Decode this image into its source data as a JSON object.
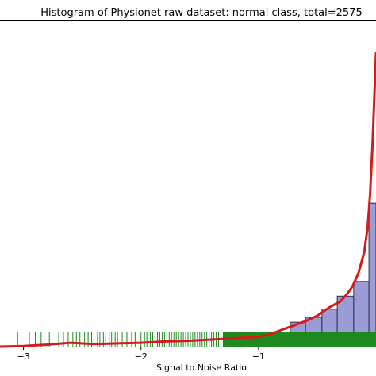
{
  "chart_data": {
    "type": "bar",
    "title": "Histogram of Physionet raw dataset: normal class, total=2575",
    "xlabel": "Signal to Noise Ratio",
    "ylabel": "",
    "xlim": [
      -3.2,
      0.0
    ],
    "ylim": [
      0,
      1.0
    ],
    "x_ticks": [
      -3,
      -2,
      -1
    ],
    "x_tick_labels": [
      "−3",
      "−2",
      "−1"
    ],
    "grid": false,
    "colors": {
      "bars": "#9b9bd6",
      "bar_edge": "#2e2e4a",
      "kde": "#d61a1a",
      "rug": "#1c8a1c",
      "axes": "#000000"
    },
    "bins": [
      {
        "x0": -1.27,
        "x1": -1.14,
        "value": 0.004
      },
      {
        "x0": -1.14,
        "x1": -1.0,
        "value": 0.01
      },
      {
        "x0": -1.0,
        "x1": -0.87,
        "value": 0.02
      },
      {
        "x0": -0.87,
        "x1": -0.73,
        "value": 0.035
      },
      {
        "x0": -0.73,
        "x1": -0.6,
        "value": 0.075
      },
      {
        "x0": -0.6,
        "x1": -0.46,
        "value": 0.09
      },
      {
        "x0": -0.46,
        "x1": -0.33,
        "value": 0.115
      },
      {
        "x0": -0.33,
        "x1": -0.19,
        "value": 0.155
      },
      {
        "x0": -0.19,
        "x1": -0.06,
        "value": 0.2
      },
      {
        "x0": -0.06,
        "x1": 0.0,
        "value": 0.44
      }
    ],
    "kde": {
      "x": [
        -3.2,
        -3.0,
        -2.8,
        -2.6,
        -2.4,
        -2.2,
        -2.0,
        -1.8,
        -1.6,
        -1.4,
        -1.2,
        -1.1,
        -1.0,
        -0.9,
        -0.8,
        -0.7,
        -0.6,
        -0.5,
        -0.4,
        -0.3,
        -0.25,
        -0.2,
        -0.15,
        -0.1,
        -0.07,
        -0.05,
        -0.03,
        -0.015,
        0.0
      ],
      "y": [
        0.0,
        0.002,
        0.006,
        0.012,
        0.008,
        0.01,
        0.012,
        0.016,
        0.018,
        0.022,
        0.026,
        0.028,
        0.03,
        0.038,
        0.052,
        0.065,
        0.078,
        0.095,
        0.12,
        0.14,
        0.16,
        0.185,
        0.225,
        0.29,
        0.37,
        0.47,
        0.62,
        0.76,
        0.9
      ]
    },
    "rug": {
      "sparse_x": [
        -3.05,
        -2.95,
        -2.9,
        -2.85,
        -2.78,
        -2.7,
        -2.66,
        -2.62,
        -2.58,
        -2.55,
        -2.52,
        -2.48,
        -2.45,
        -2.42,
        -2.4,
        -2.37,
        -2.35,
        -2.32,
        -2.3,
        -2.27,
        -2.25,
        -2.22,
        -2.2,
        -2.16,
        -2.12,
        -2.08,
        -2.05,
        -2.0,
        -1.97,
        -1.95,
        -1.92,
        -1.9,
        -1.88,
        -1.86,
        -1.84,
        -1.82,
        -1.8,
        -1.78,
        -1.76,
        -1.74,
        -1.72,
        -1.7,
        -1.68,
        -1.66,
        -1.64,
        -1.62,
        -1.6,
        -1.58,
        -1.56,
        -1.54,
        -1.52,
        -1.5,
        -1.48,
        -1.46,
        -1.44,
        -1.42,
        -1.4,
        -1.38,
        -1.36,
        -1.34,
        -1.32,
        -1.3
      ],
      "dense_from": -1.3,
      "dense_to": 0.0,
      "height": 0.045
    }
  }
}
